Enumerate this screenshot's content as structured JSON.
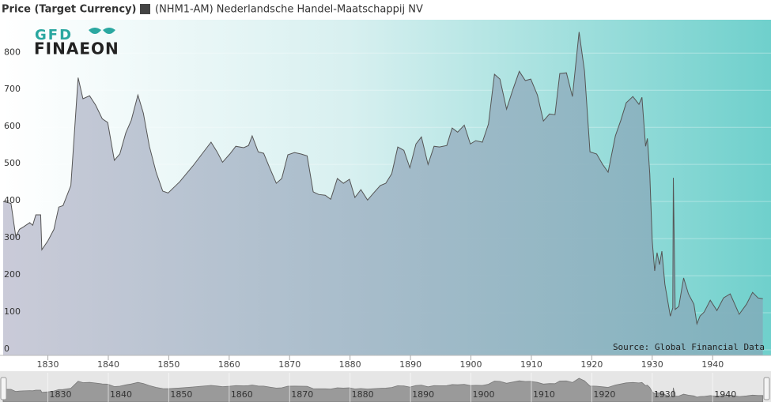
{
  "logo": {
    "line1": "GFD",
    "line2": "FINAEON"
  },
  "chart_data": {
    "type": "area",
    "y_label": "Price (Target Currency)",
    "source": "Source: Global Financial Data",
    "x": [
      1822.6,
      1823.9,
      1824.7,
      1825.3,
      1826,
      1827,
      1827.5,
      1828,
      1828.8,
      1829,
      1830,
      1831,
      1831.8,
      1832.5,
      1833.8,
      1835,
      1835.8,
      1836.9,
      1837.9,
      1839,
      1839.9,
      1841,
      1841.9,
      1842.9,
      1843.8,
      1844.9,
      1845.8,
      1846.8,
      1847.9,
      1849,
      1849.9,
      1851.8,
      1854,
      1855.5,
      1857,
      1858,
      1858.9,
      1860.1,
      1861.1,
      1862.4,
      1863.2,
      1863.8,
      1864.8,
      1865.7,
      1866.7,
      1867.8,
      1868.7,
      1869.7,
      1870.8,
      1871.9,
      1872.9,
      1873.9,
      1874.8,
      1875.9,
      1876.8,
      1877.9,
      1878.9,
      1879.9,
      1880.8,
      1881.8,
      1882.9,
      1883.9,
      1885,
      1885.9,
      1886.9,
      1887.9,
      1888.9,
      1889.9,
      1890.9,
      1891.8,
      1892.9,
      1893.9,
      1894.8,
      1896,
      1896.9,
      1897.8,
      1898.9,
      1899.9,
      1900.8,
      1901.9,
      1902.9,
      1903.9,
      1904.8,
      1905.9,
      1906.9,
      1908,
      1909,
      1909.9,
      1911,
      1912,
      1913,
      1913.9,
      1914.7,
      1915.8,
      1916.8,
      1917.9,
      1918.8,
      1919.7,
      1920.8,
      1921.8,
      1922.7,
      1923.9,
      1924.8,
      1925.7,
      1926.8,
      1927.8,
      1928.3,
      1928.9,
      1929.2,
      1929.6,
      1930,
      1930.4,
      1930.8,
      1931.2,
      1931.6,
      1932.1,
      1933,
      1933.4,
      1933.5,
      1933.8,
      1934.4,
      1935.2,
      1936,
      1936.9,
      1937.4,
      1937.9,
      1938.6,
      1939.6,
      1940.7,
      1941.8,
      1942.9,
      1944.4,
      1945.6,
      1946.6,
      1947.5,
      1948.3
    ],
    "series": [
      {
        "name": "(NHM1-AM) Nederlandsche Handel-Maatschappij NV",
        "color": "#444444",
        "values": [
          400,
          395,
          305,
          325,
          332,
          343,
          336,
          364,
          364,
          270,
          294,
          325,
          385,
          389,
          443,
          734,
          677,
          685,
          660,
          623,
          613,
          511,
          528,
          585,
          619,
          687,
          638,
          549,
          479,
          428,
          423,
          453,
          496,
          528,
          560,
          534,
          506,
          528,
          549,
          545,
          551,
          577,
          534,
          530,
          491,
          449,
          462,
          526,
          532,
          528,
          523,
          426,
          419,
          417,
          406,
          462,
          449,
          460,
          411,
          432,
          404,
          423,
          443,
          449,
          475,
          547,
          538,
          491,
          555,
          574,
          500,
          549,
          547,
          551,
          598,
          587,
          606,
          555,
          564,
          560,
          609,
          743,
          730,
          649,
          700,
          751,
          726,
          730,
          687,
          617,
          636,
          634,
          745,
          747,
          683,
          857,
          751,
          534,
          528,
          500,
          479,
          577,
          619,
          666,
          683,
          662,
          681,
          549,
          570,
          475,
          294,
          213,
          262,
          230,
          266,
          177,
          91,
          113,
          464,
          109,
          117,
          194,
          151,
          123,
          70,
          91,
          102,
          134,
          106,
          140,
          151,
          96,
          123,
          155,
          140,
          138
        ]
      }
    ],
    "xlim": [
      1822.6,
      1949
    ],
    "xticks": [
      1830,
      1840,
      1850,
      1860,
      1870,
      1880,
      1890,
      1900,
      1910,
      1920,
      1930,
      1940
    ],
    "ylim": [
      0,
      890
    ],
    "yticks": [
      0,
      100,
      200,
      300,
      400,
      500,
      600,
      700,
      800
    ]
  }
}
